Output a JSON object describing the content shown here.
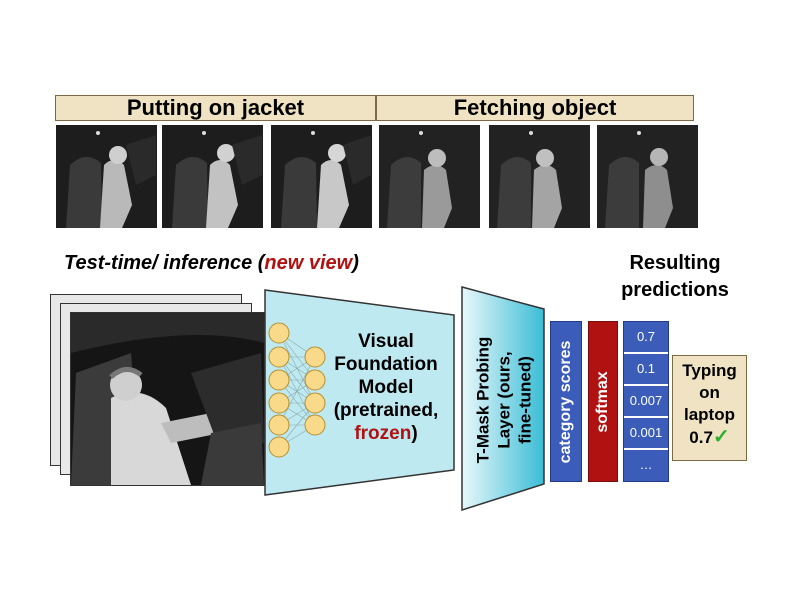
{
  "banners": [
    {
      "label": "Putting on jacket"
    },
    {
      "label": "Fetching object"
    }
  ],
  "test_title": {
    "prefix": "Test-time/ inference (",
    "highlight": "new view",
    "suffix": ")"
  },
  "result_title": {
    "line1": "Resulting",
    "line2": "predictions"
  },
  "vfm": {
    "line1": "Visual",
    "line2": "Foundation",
    "line3": "Model",
    "line4": "(pretrained,",
    "frozen": "frozen",
    "close": ")"
  },
  "probe": {
    "line1": "T-Mask Probing",
    "line2": "Layer (ours,",
    "line3": "fine-tuned)"
  },
  "category_scores": {
    "label": "category scores"
  },
  "softmax": {
    "label": "softmax"
  },
  "scores": [
    "0.7",
    "0.1",
    "0.007",
    "0.001",
    "…"
  ],
  "prediction": {
    "line1": "Typing",
    "line2": "on",
    "line3": "laptop",
    "value": "0.7",
    "check": "✓"
  },
  "colors": {
    "banner_bg": "#efe3c3",
    "accent_red": "#b01212",
    "bar_blue": "#3b5cb8",
    "softmax_red": "#b01212",
    "model_cyan": "#bfe9f1",
    "neuron": "#f9d98a",
    "check_green": "#2fae2f"
  }
}
